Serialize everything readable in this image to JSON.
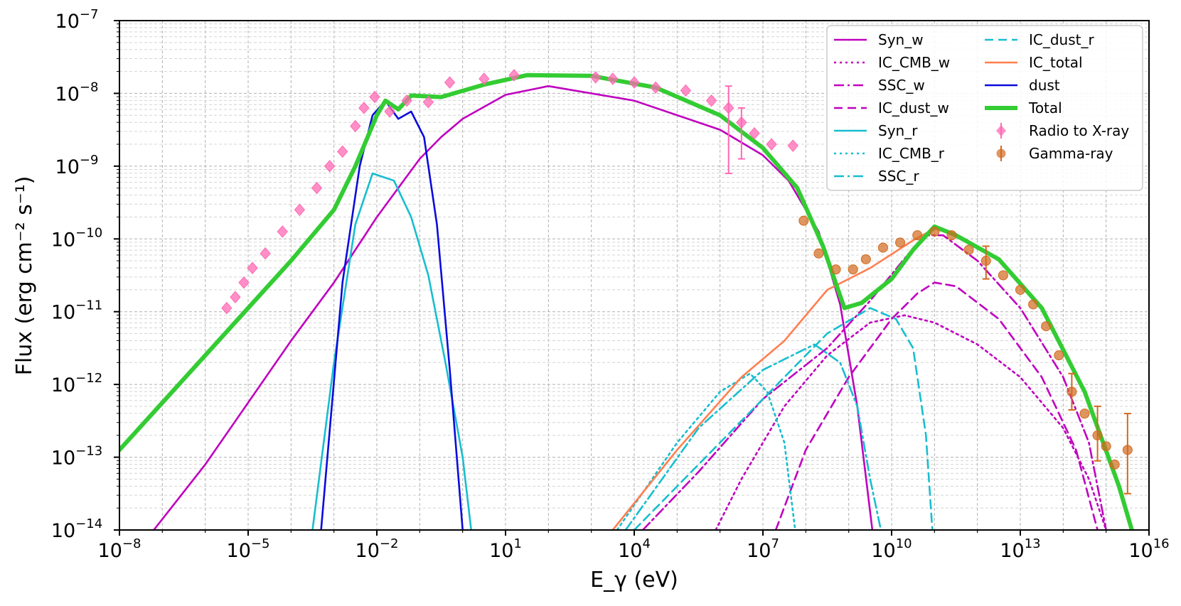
{
  "chart_data": {
    "type": "line",
    "title": "",
    "xlabel": "E_γ (eV)",
    "ylabel": "Flux (erg cm⁻² s⁻¹)",
    "x_scale": "log",
    "y_scale": "log",
    "xlim_log10": [
      -8,
      16
    ],
    "ylim_log10": [
      -14,
      -7
    ],
    "x_ticks": [
      {
        "base": "10",
        "exp": "−8",
        "value_log10": -8
      },
      {
        "base": "10",
        "exp": "−5",
        "value_log10": -5
      },
      {
        "base": "10",
        "exp": "−2",
        "value_log10": -2
      },
      {
        "base": "10",
        "exp": "1",
        "value_log10": 1
      },
      {
        "base": "10",
        "exp": "4",
        "value_log10": 4
      },
      {
        "base": "10",
        "exp": "7",
        "value_log10": 7
      },
      {
        "base": "10",
        "exp": "10",
        "value_log10": 10
      },
      {
        "base": "10",
        "exp": "13",
        "value_log10": 13
      },
      {
        "base": "10",
        "exp": "16",
        "value_log10": 16
      }
    ],
    "y_ticks": [
      {
        "base": "10",
        "exp": "−7",
        "value_log10": -7
      },
      {
        "base": "10",
        "exp": "−8",
        "value_log10": -8
      },
      {
        "base": "10",
        "exp": "−9",
        "value_log10": -9
      },
      {
        "base": "10",
        "exp": "−10",
        "value_log10": -10
      },
      {
        "base": "10",
        "exp": "−11",
        "value_log10": -11
      },
      {
        "base": "10",
        "exp": "−12",
        "value_log10": -12
      },
      {
        "base": "10",
        "exp": "−13",
        "value_log10": -13
      },
      {
        "base": "10",
        "exp": "−14",
        "value_log10": -14
      }
    ],
    "grid": true,
    "legend_position": "top-right",
    "series": [
      {
        "name": "Syn_w",
        "kind": "line",
        "color": "#bf00bf",
        "dash": "solid",
        "points_log10": [
          [
            -7.2,
            -14
          ],
          [
            -6,
            -13.1
          ],
          [
            -4,
            -11.4
          ],
          [
            -3,
            -10.6
          ],
          [
            -2,
            -9.7
          ],
          [
            -1,
            -8.9
          ],
          [
            -0.5,
            -8.6
          ],
          [
            0,
            -8.35
          ],
          [
            1,
            -8.02
          ],
          [
            2,
            -7.9
          ],
          [
            4,
            -8.1
          ],
          [
            6,
            -8.5
          ],
          [
            7,
            -8.85
          ],
          [
            7.6,
            -9.2
          ],
          [
            8.3,
            -9.9
          ],
          [
            8.8,
            -10.9
          ],
          [
            9.2,
            -12.3
          ],
          [
            9.55,
            -14
          ]
        ]
      },
      {
        "name": "IC_CMB_w",
        "kind": "line",
        "color": "#bf00bf",
        "dash": "dotted",
        "points_log10": [
          [
            5.9,
            -14
          ],
          [
            6.5,
            -13.3
          ],
          [
            7.5,
            -12.3
          ],
          [
            8.5,
            -11.6
          ],
          [
            9.5,
            -11.15
          ],
          [
            10.3,
            -11.05
          ],
          [
            11,
            -11.15
          ],
          [
            12,
            -11.45
          ],
          [
            13,
            -11.9
          ],
          [
            14,
            -12.6
          ],
          [
            14.6,
            -13.3
          ],
          [
            15,
            -14
          ]
        ]
      },
      {
        "name": "SSC_w",
        "kind": "line",
        "color": "#bf00bf",
        "dash": "dashdot",
        "points_log10": [
          [
            4.2,
            -14
          ],
          [
            5.5,
            -13.2
          ],
          [
            7,
            -12.2
          ],
          [
            8.5,
            -11.5
          ],
          [
            9.5,
            -10.85
          ],
          [
            10.4,
            -10.2
          ],
          [
            10.8,
            -9.95
          ],
          [
            11.2,
            -9.95
          ],
          [
            12,
            -10.3
          ],
          [
            13,
            -10.95
          ],
          [
            14,
            -11.9
          ],
          [
            14.6,
            -12.8
          ],
          [
            15,
            -14
          ]
        ]
      },
      {
        "name": "IC_dust_w",
        "kind": "line",
        "color": "#bf00bf",
        "dash": "dashed",
        "points_log10": [
          [
            7.3,
            -14
          ],
          [
            8,
            -12.9
          ],
          [
            9,
            -11.9
          ],
          [
            10,
            -11.1
          ],
          [
            10.6,
            -10.75
          ],
          [
            11,
            -10.6
          ],
          [
            11.5,
            -10.65
          ],
          [
            12.5,
            -11.1
          ],
          [
            13.5,
            -11.9
          ],
          [
            14.3,
            -12.9
          ],
          [
            14.8,
            -14
          ]
        ]
      },
      {
        "name": "Syn_r",
        "kind": "line",
        "color": "#17becf",
        "dash": "solid",
        "points_log10": [
          [
            -3.5,
            -14
          ],
          [
            -3,
            -11.7
          ],
          [
            -2.5,
            -9.8
          ],
          [
            -2.1,
            -9.1
          ],
          [
            -1.6,
            -9.2
          ],
          [
            -1.2,
            -9.7
          ],
          [
            -0.8,
            -10.5
          ],
          [
            -0.4,
            -11.7
          ],
          [
            0,
            -13
          ],
          [
            0.2,
            -14
          ]
        ]
      },
      {
        "name": "IC_CMB_r",
        "kind": "line",
        "color": "#17becf",
        "dash": "dotted",
        "points_log10": [
          [
            3.6,
            -14
          ],
          [
            5,
            -12.8
          ],
          [
            6,
            -12.1
          ],
          [
            6.7,
            -11.85
          ],
          [
            7.1,
            -12.1
          ],
          [
            7.5,
            -12.8
          ],
          [
            7.75,
            -14
          ]
        ]
      },
      {
        "name": "SSC_r",
        "kind": "line",
        "color": "#17becf",
        "dash": "dashdot",
        "points_log10": [
          [
            3.8,
            -14
          ],
          [
            5.5,
            -12.6
          ],
          [
            7,
            -11.8
          ],
          [
            8.2,
            -11.45
          ],
          [
            8.8,
            -11.7
          ],
          [
            9.2,
            -12.3
          ],
          [
            9.5,
            -13.3
          ],
          [
            9.75,
            -14
          ]
        ]
      },
      {
        "name": "IC_dust_r",
        "kind": "line",
        "color": "#17becf",
        "dash": "dashed",
        "points_log10": [
          [
            4,
            -14
          ],
          [
            5.5,
            -13.1
          ],
          [
            7,
            -12.2
          ],
          [
            8.5,
            -11.3
          ],
          [
            9.5,
            -10.95
          ],
          [
            10.1,
            -11.1
          ],
          [
            10.5,
            -11.5
          ],
          [
            10.8,
            -12.7
          ],
          [
            10.95,
            -14
          ]
        ]
      },
      {
        "name": "IC_total",
        "kind": "line",
        "color": "#ff7f50",
        "dash": "solid",
        "points_log10": [
          [
            3.5,
            -14
          ],
          [
            5,
            -12.9
          ],
          [
            6.5,
            -11.9
          ],
          [
            7.5,
            -11.4
          ],
          [
            8.5,
            -10.7
          ],
          [
            9.5,
            -10.4
          ],
          [
            10.5,
            -10.02
          ],
          [
            11,
            -9.86
          ],
          [
            11.5,
            -9.95
          ],
          [
            12.5,
            -10.3
          ],
          [
            13.5,
            -10.95
          ],
          [
            14.5,
            -12.1
          ],
          [
            15.3,
            -13.4
          ],
          [
            15.6,
            -14
          ]
        ]
      },
      {
        "name": "dust",
        "kind": "line",
        "color": "#0b0bdd",
        "dash": "solid",
        "points_log10": [
          [
            -3.3,
            -14
          ],
          [
            -2.8,
            -10.6
          ],
          [
            -2.4,
            -9
          ],
          [
            -2.1,
            -8.3
          ],
          [
            -1.8,
            -8.1
          ],
          [
            -1.5,
            -8.35
          ],
          [
            -1.2,
            -8.25
          ],
          [
            -0.9,
            -8.6
          ],
          [
            -0.6,
            -9.8
          ],
          [
            -0.3,
            -11.8
          ],
          [
            0,
            -14
          ]
        ]
      },
      {
        "name": "Total",
        "kind": "line",
        "color": "#33cc33",
        "dash": "solid",
        "thick": true,
        "points_log10": [
          [
            -8,
            -12.9
          ],
          [
            -6,
            -11.6
          ],
          [
            -4,
            -10.3
          ],
          [
            -3,
            -9.6
          ],
          [
            -2.5,
            -9
          ],
          [
            -2,
            -8.3
          ],
          [
            -1.8,
            -8.1
          ],
          [
            -1.5,
            -8.22
          ],
          [
            -1.2,
            -8.03
          ],
          [
            -0.5,
            -8.05
          ],
          [
            0.5,
            -7.88
          ],
          [
            1.5,
            -7.75
          ],
          [
            3,
            -7.76
          ],
          [
            4.5,
            -7.92
          ],
          [
            6,
            -8.3
          ],
          [
            7,
            -8.75
          ],
          [
            7.8,
            -9.3
          ],
          [
            8.4,
            -10.1
          ],
          [
            8.9,
            -10.95
          ],
          [
            9.3,
            -10.88
          ],
          [
            10,
            -10.55
          ],
          [
            10.5,
            -10.15
          ],
          [
            11,
            -9.83
          ],
          [
            11.5,
            -9.95
          ],
          [
            12.5,
            -10.28
          ],
          [
            13.5,
            -10.95
          ],
          [
            14.5,
            -12.1
          ],
          [
            15.3,
            -13.4
          ],
          [
            15.6,
            -14
          ]
        ]
      },
      {
        "name": "Radio to X-ray",
        "kind": "scatter",
        "color": "#ff69b4",
        "marker": "diamond",
        "points_log10": [
          [
            -5.5,
            -10.95
          ],
          [
            -5.3,
            -10.8
          ],
          [
            -5.1,
            -10.6
          ],
          [
            -4.9,
            -10.4
          ],
          [
            -4.6,
            -10.2
          ],
          [
            -4.2,
            -9.9
          ],
          [
            -3.8,
            -9.6
          ],
          [
            -3.4,
            -9.3
          ],
          [
            -3.1,
            -9
          ],
          [
            -2.8,
            -8.8
          ],
          [
            -2.5,
            -8.45
          ],
          [
            -2.3,
            -8.2
          ],
          [
            -2.05,
            -8.05
          ],
          [
            -1.7,
            -8.25
          ],
          [
            -1.3,
            -8.1
          ],
          [
            -0.8,
            -8.12
          ],
          [
            -0.3,
            -7.85
          ],
          [
            0.5,
            -7.8
          ],
          [
            1.2,
            -7.75
          ],
          [
            3.1,
            -7.78
          ],
          [
            3.5,
            -7.8
          ],
          [
            4,
            -7.85
          ],
          [
            4.5,
            -7.92
          ],
          [
            5.2,
            -7.96
          ],
          [
            5.8,
            -8.1
          ],
          [
            6.2,
            -8.2
          ],
          [
            6.5,
            -8.4
          ],
          [
            6.8,
            -8.55
          ],
          [
            7.2,
            -8.7
          ],
          [
            7.7,
            -8.72
          ]
        ],
        "error_bars_log10": [
          [
            6.2,
            -8.2,
            -9.1,
            -7.9
          ],
          [
            6.5,
            -8.4,
            -8.9,
            -8.2
          ]
        ]
      },
      {
        "name": "Gamma-ray",
        "kind": "scatter",
        "color": "#d2691e",
        "marker": "circle",
        "points_log10": [
          [
            7.95,
            -9.75
          ],
          [
            8.3,
            -10.2
          ],
          [
            8.7,
            -10.42
          ],
          [
            9.1,
            -10.42
          ],
          [
            9.4,
            -10.28
          ],
          [
            9.8,
            -10.12
          ],
          [
            10.2,
            -10.05
          ],
          [
            10.6,
            -9.95
          ],
          [
            11,
            -9.9
          ],
          [
            11.4,
            -9.95
          ],
          [
            11.8,
            -10.15
          ],
          [
            12.2,
            -10.3
          ],
          [
            12.6,
            -10.5
          ],
          [
            13,
            -10.7
          ],
          [
            13.3,
            -10.9
          ],
          [
            13.6,
            -11.2
          ],
          [
            13.9,
            -11.6
          ],
          [
            14.2,
            -12.1
          ],
          [
            14.5,
            -12.4
          ],
          [
            14.8,
            -12.7
          ],
          [
            15,
            -12.85
          ],
          [
            15.2,
            -13.1
          ],
          [
            15.5,
            -12.9
          ]
        ],
        "error_bars_log10": [
          [
            12.2,
            -10.3,
            -10.55,
            -10.1
          ],
          [
            14.2,
            -12.1,
            -12.35,
            -11.85
          ],
          [
            14.8,
            -12.7,
            -13.05,
            -12.3
          ],
          [
            15.5,
            -12.9,
            -13.5,
            -12.4
          ]
        ]
      }
    ]
  }
}
